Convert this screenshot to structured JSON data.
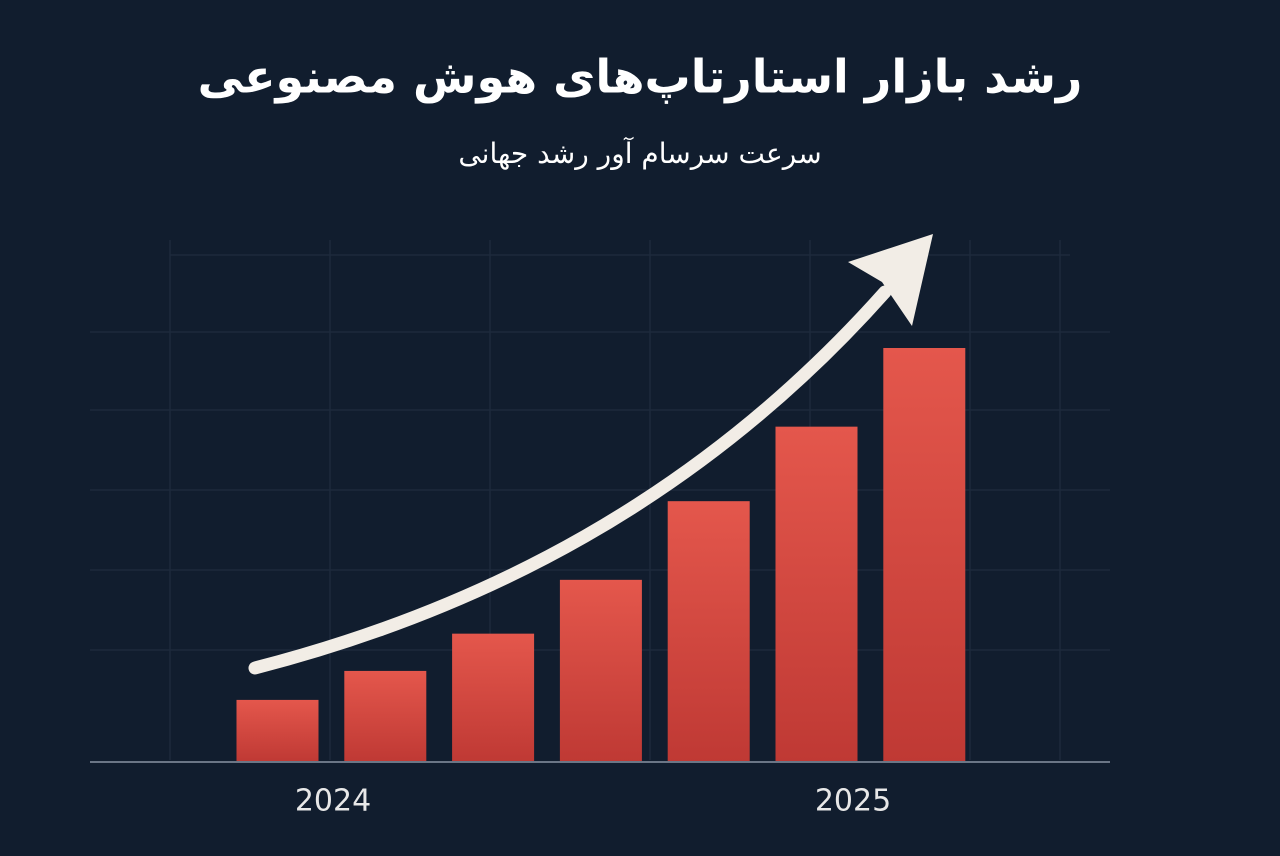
{
  "chart_data": {
    "type": "bar",
    "title": "رشد بازار استارتاپ‌های هوش مصنوعی",
    "subtitle": "سرعت سرسام آور رشد جهانی",
    "categories": [
      null,
      null,
      null,
      null,
      null,
      null,
      null
    ],
    "values": [
      15,
      22,
      31,
      44,
      63,
      81,
      100
    ],
    "color": "#e0524a",
    "annotations": [
      "2024",
      "2025"
    ],
    "grid": true
  }
}
